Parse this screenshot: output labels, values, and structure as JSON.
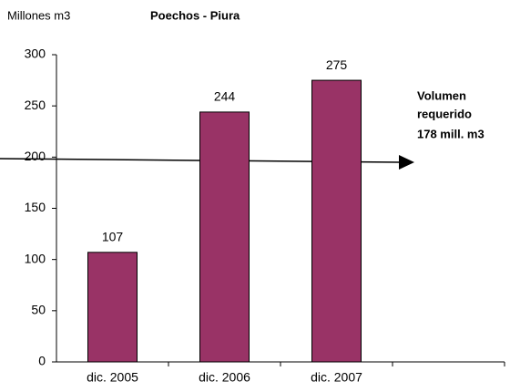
{
  "chart_data": {
    "type": "bar",
    "title": "Poechos - Piura",
    "y_label": "Millones m3",
    "categories": [
      "dic. 2005",
      "dic. 2006",
      "dic. 2007",
      null
    ],
    "values": [
      107,
      244,
      275,
      null
    ],
    "color": "#993366",
    "ylim": [
      0,
      300
    ],
    "yticks": [
      0,
      50,
      100,
      150,
      200,
      250,
      300
    ],
    "annotation": [
      "Volumen",
      "requerido",
      "178 mill. m3"
    ]
  }
}
